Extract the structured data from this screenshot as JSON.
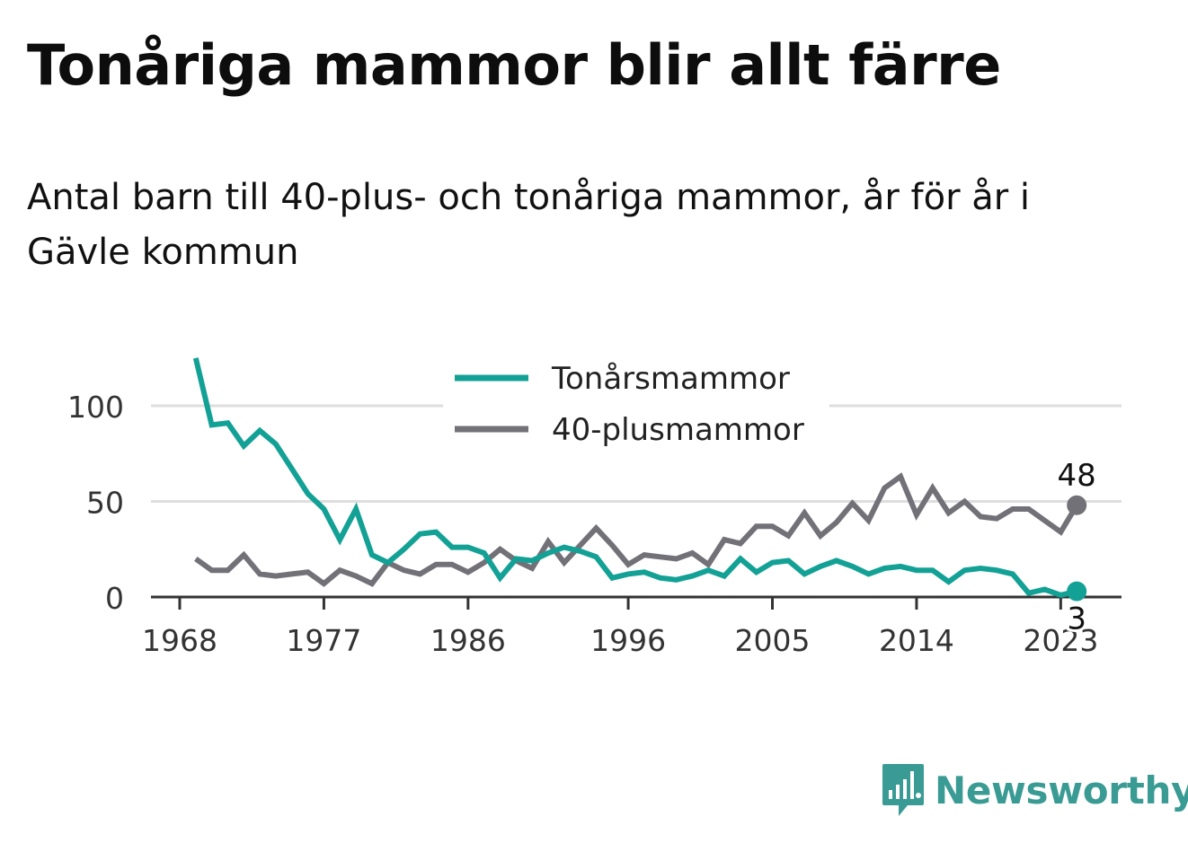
{
  "header": {
    "title": "Tonåriga mammor blir allt färre",
    "subtitle": "Antal barn till 40-plus- och tonåriga mammor, år för år i Gävle kommun"
  },
  "branding": {
    "name": "Newsworthy",
    "icon": "bar-chart-speech-bubble-icon",
    "color": "#3a9b94"
  },
  "chart_data": {
    "type": "line",
    "x": [
      1969,
      1970,
      1971,
      1972,
      1973,
      1974,
      1975,
      1976,
      1977,
      1978,
      1979,
      1980,
      1981,
      1982,
      1983,
      1984,
      1985,
      1986,
      1987,
      1988,
      1989,
      1990,
      1991,
      1992,
      1993,
      1994,
      1995,
      1996,
      1997,
      1998,
      1999,
      2000,
      2001,
      2002,
      2003,
      2004,
      2005,
      2006,
      2007,
      2008,
      2009,
      2010,
      2011,
      2012,
      2013,
      2014,
      2015,
      2016,
      2017,
      2018,
      2019,
      2020,
      2021,
      2022,
      2023,
      2024
    ],
    "series": [
      {
        "name": "Tonårsmammor",
        "color": "#13a196",
        "values": [
          125,
          90,
          91,
          79,
          87,
          80,
          67,
          54,
          46,
          30,
          46,
          22,
          18,
          25,
          33,
          34,
          26,
          26,
          23,
          10,
          20,
          19,
          23,
          26,
          24,
          21,
          10,
          12,
          13,
          10,
          9,
          11,
          14,
          11,
          20,
          13,
          18,
          19,
          12,
          16,
          19,
          16,
          12,
          15,
          16,
          14,
          14,
          8,
          14,
          15,
          14,
          12,
          2,
          4,
          1,
          3
        ]
      },
      {
        "name": "40-plusmammor",
        "color": "#727178",
        "values": [
          20,
          14,
          14,
          22,
          12,
          11,
          12,
          13,
          7,
          14,
          11,
          7,
          18,
          14,
          12,
          17,
          17,
          13,
          18,
          25,
          19,
          15,
          29,
          18,
          27,
          36,
          27,
          17,
          22,
          21,
          20,
          23,
          17,
          30,
          28,
          37,
          37,
          32,
          44,
          32,
          39,
          49,
          40,
          57,
          63,
          43,
          57,
          44,
          50,
          42,
          41,
          46,
          46,
          40,
          34,
          48
        ]
      }
    ],
    "xticks": [
      {
        "value": 1968,
        "label": "1968"
      },
      {
        "value": 1977,
        "label": "1977"
      },
      {
        "value": 1986,
        "label": "1986"
      },
      {
        "value": 1996,
        "label": "1996"
      },
      {
        "value": 2005,
        "label": "2005"
      },
      {
        "value": 2014,
        "label": "2014"
      },
      {
        "value": 2023,
        "label": "2023"
      }
    ],
    "yticks": [
      0,
      50,
      100
    ],
    "xlim": [
      1968,
      2026
    ],
    "ylim": [
      0,
      125
    ],
    "grid": true,
    "legend": "top-center",
    "end_labels": [
      {
        "series": "40-plusmammor",
        "label": "48",
        "position": "above"
      },
      {
        "series": "Tonårsmammor",
        "label": "3",
        "position": "below"
      }
    ]
  }
}
